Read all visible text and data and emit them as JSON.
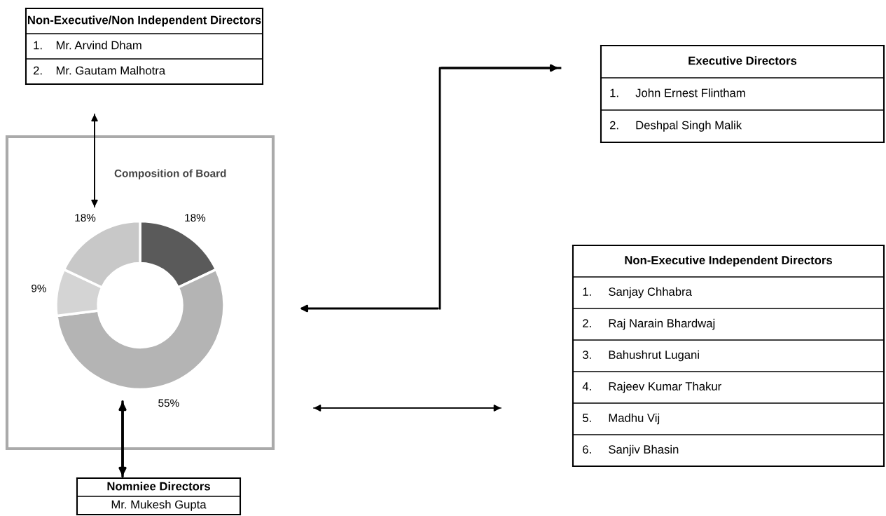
{
  "chart_data": [
    {
      "type": "donut",
      "title": "Composition of Board",
      "categories": [
        null,
        null,
        null,
        null
      ],
      "values": [
        18,
        55,
        9,
        18
      ],
      "value_labels": [
        "18%",
        "55%",
        "9%",
        "18%"
      ],
      "colors": [
        "#5a5a5a",
        "#b4b4b4",
        "#d4d4d4",
        "#c8c8c8"
      ],
      "legend": false
    },
    {
      "type": "other",
      "title": "Non-Executive/Non Independent Directors",
      "annotations": [
        "1.    Mr. Arvind Dham",
        "2.    Mr. Gautam Malhotra"
      ]
    },
    {
      "type": "other",
      "title": "Executive Directors",
      "annotations": [
        "1.     John Ernest Flintham",
        "2.     Deshpal Singh Malik"
      ]
    },
    {
      "type": "other",
      "title": "Non-Executive Independent Directors",
      "annotations": [
        "1.     Sanjay Chhabra",
        "2.     Raj Narain Bhardwaj",
        "3.     Bahushrut Lugani",
        "4.     Rajeev Kumar Thakur",
        "5.     Madhu Vij",
        "6.     Sanjiv Bhasin"
      ]
    },
    {
      "type": "other",
      "title": "Nomniee Directors",
      "annotations": [
        "Mr. Mukesh Gupta"
      ]
    }
  ]
}
